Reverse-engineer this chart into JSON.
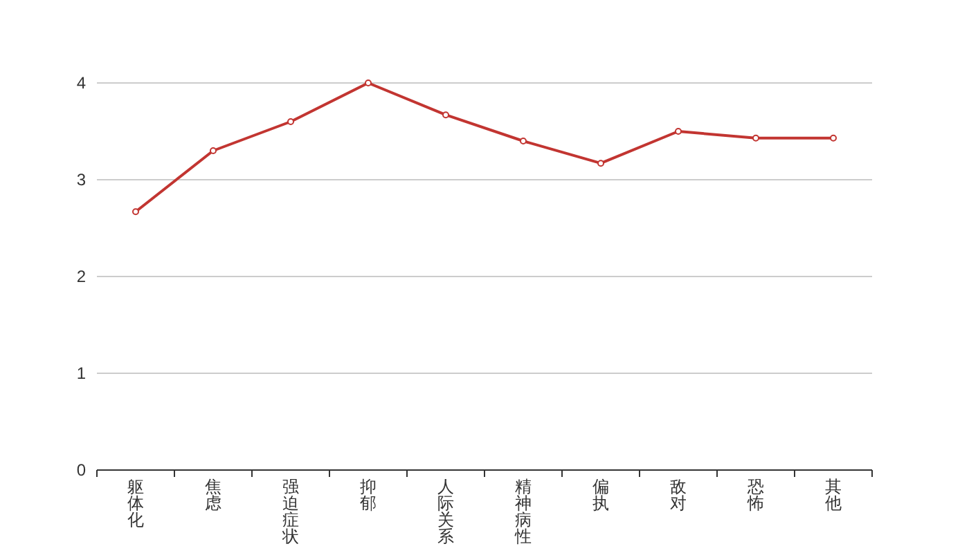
{
  "chart_data": {
    "type": "line",
    "categories": [
      "躯体化",
      "焦虑",
      "强迫症状",
      "抑郁",
      "人际关系",
      "精神病性",
      "偏执",
      "敌对",
      "恐怖",
      "其他"
    ],
    "series": [
      {
        "color": "#c23531",
        "values": [
          2.67,
          3.3,
          3.6,
          4.0,
          3.67,
          3.4,
          3.17,
          3.5,
          3.43,
          3.43
        ]
      }
    ],
    "ylim": [
      0,
      4
    ],
    "yticks": [
      0,
      1,
      2,
      3,
      4
    ],
    "grid": "y",
    "marker": "circle",
    "line_style": "solid"
  }
}
